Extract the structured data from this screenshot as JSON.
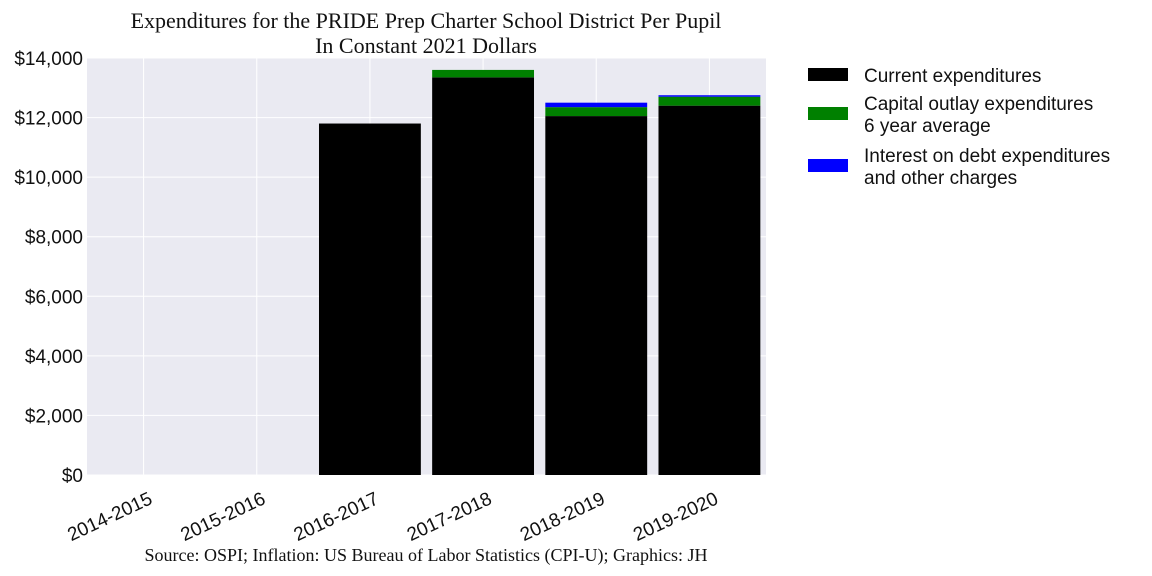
{
  "chart_data": {
    "type": "bar",
    "stacked": true,
    "title": "Expenditures for the PRIDE Prep Charter School District Per Pupil",
    "subtitle": "In Constant 2021 Dollars",
    "source": "Source: OSPI; Inflation: US Bureau of Labor Statistics (CPI-U); Graphics: JH",
    "xlabel": "",
    "ylabel": "",
    "ylim": [
      0,
      14000
    ],
    "yticks": [
      0,
      2000,
      4000,
      6000,
      8000,
      10000,
      12000,
      14000
    ],
    "ytick_labels": [
      "$0",
      "$2,000",
      "$4,000",
      "$6,000",
      "$8,000",
      "$10,000",
      "$12,000",
      "$14,000"
    ],
    "categories": [
      "2014-2015",
      "2015-2016",
      "2016-2017",
      "2017-2018",
      "2018-2019",
      "2019-2020"
    ],
    "grid": true,
    "legend_position": "outside-right",
    "series": [
      {
        "name": "Current expenditures",
        "color": "#000000",
        "values": [
          0,
          0,
          11800,
          13350,
          12050,
          12400
        ]
      },
      {
        "name": "Capital outlay expenditures\n6 year average",
        "color": "#008000",
        "values": [
          0,
          0,
          0,
          250,
          300,
          300
        ]
      },
      {
        "name": "Interest on debt expenditures\nand other charges",
        "color": "#0000ff",
        "values": [
          0,
          0,
          0,
          0,
          150,
          50
        ]
      }
    ]
  }
}
